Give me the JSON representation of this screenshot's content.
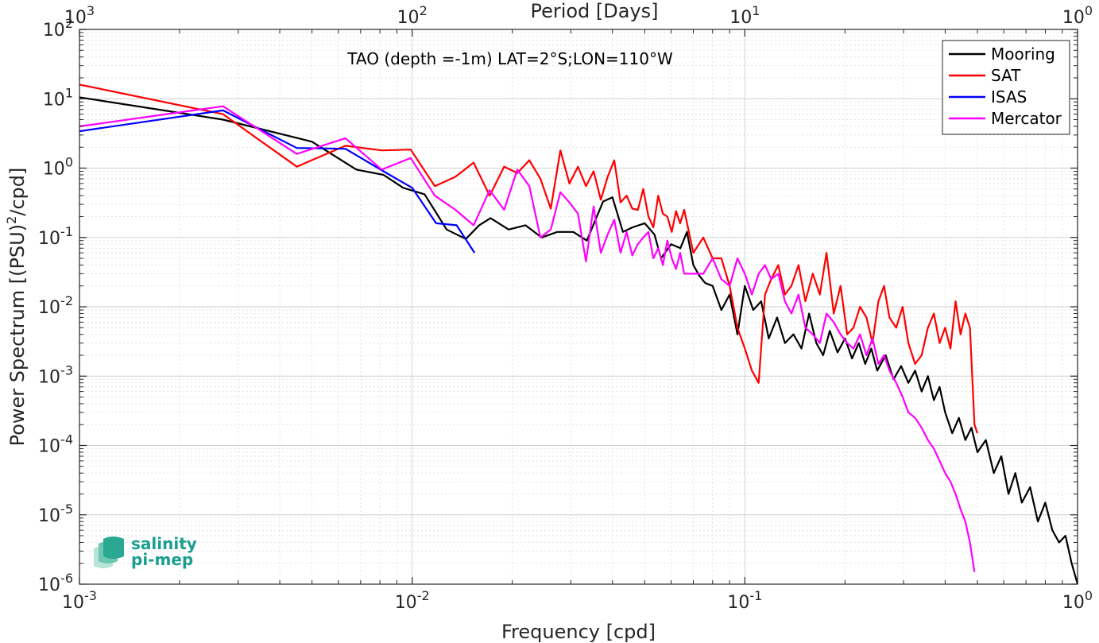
{
  "chart_data": {
    "type": "line",
    "title": "",
    "annotation": "TAO (depth =-1m) LAT=2°S;LON=110°W",
    "xlabel": "Frequency [cpd]",
    "ylabel_parts": [
      "Power Spectrum [(PSU)",
      "2",
      "/cpd]"
    ],
    "top_xlabel": "Period [Days]",
    "xscale": "log",
    "yscale": "log",
    "xlim": [
      0.001,
      1
    ],
    "ylim": [
      1e-06,
      100
    ],
    "grid": true,
    "legend_position": "top-right",
    "x_ticks": [
      {
        "value": 0.001,
        "base": "10",
        "exp": "-3"
      },
      {
        "value": 0.01,
        "base": "10",
        "exp": "-2"
      },
      {
        "value": 0.1,
        "base": "10",
        "exp": "-1"
      },
      {
        "value": 1,
        "base": "10",
        "exp": "0"
      }
    ],
    "top_ticks": [
      {
        "value": 0.001,
        "base": "10",
        "exp": "3"
      },
      {
        "value": 0.01,
        "base": "10",
        "exp": "2"
      },
      {
        "value": 0.1,
        "base": "10",
        "exp": "1"
      },
      {
        "value": 1,
        "base": "10",
        "exp": "0"
      }
    ],
    "y_ticks": [
      {
        "value": 100,
        "base": "10",
        "exp": "2"
      },
      {
        "value": 10,
        "base": "10",
        "exp": "1"
      },
      {
        "value": 1,
        "base": "10",
        "exp": "0"
      },
      {
        "value": 0.1,
        "base": "10",
        "exp": "-1"
      },
      {
        "value": 0.01,
        "base": "10",
        "exp": "-2"
      },
      {
        "value": 0.001,
        "base": "10",
        "exp": "-3"
      },
      {
        "value": 0.0001,
        "base": "10",
        "exp": "-4"
      },
      {
        "value": 1e-05,
        "base": "10",
        "exp": "-5"
      },
      {
        "value": 1e-06,
        "base": "10",
        "exp": "-6"
      }
    ],
    "series": [
      {
        "name": "Mooring",
        "color": "#000000",
        "x": [
          0.001,
          0.0027,
          0.005,
          0.0068,
          0.0082,
          0.0094,
          0.0109,
          0.0127,
          0.0145,
          0.0159,
          0.0172,
          0.0195,
          0.0219,
          0.0245,
          0.0273,
          0.0305,
          0.0335,
          0.0375,
          0.04,
          0.043,
          0.046,
          0.05,
          0.0535,
          0.056,
          0.06,
          0.064,
          0.067,
          0.07,
          0.073,
          0.076,
          0.08,
          0.085,
          0.09,
          0.095,
          0.1,
          0.106,
          0.112,
          0.118,
          0.125,
          0.132,
          0.14,
          0.148,
          0.156,
          0.164,
          0.172,
          0.18,
          0.19,
          0.2,
          0.21,
          0.22,
          0.23,
          0.24,
          0.25,
          0.265,
          0.28,
          0.295,
          0.31,
          0.325,
          0.34,
          0.355,
          0.37,
          0.385,
          0.4,
          0.42,
          0.44,
          0.46,
          0.48,
          0.5,
          0.53,
          0.56,
          0.59,
          0.62,
          0.65,
          0.68,
          0.72,
          0.76,
          0.8,
          0.84,
          0.88,
          0.92,
          0.96,
          1.0
        ],
        "y": [
          10.5,
          5.0,
          2.4,
          0.95,
          0.8,
          0.52,
          0.42,
          0.13,
          0.095,
          0.15,
          0.19,
          0.13,
          0.15,
          0.1,
          0.12,
          0.12,
          0.09,
          0.33,
          0.38,
          0.12,
          0.14,
          0.16,
          0.11,
          0.05,
          0.08,
          0.07,
          0.12,
          0.04,
          0.028,
          0.022,
          0.02,
          0.009,
          0.015,
          0.004,
          0.02,
          0.009,
          0.012,
          0.0035,
          0.007,
          0.003,
          0.004,
          0.0025,
          0.008,
          0.003,
          0.002,
          0.0045,
          0.0022,
          0.0035,
          0.0018,
          0.003,
          0.0015,
          0.0025,
          0.0012,
          0.002,
          0.0009,
          0.0014,
          0.0008,
          0.0012,
          0.0006,
          0.001,
          0.00045,
          0.0007,
          0.0003,
          0.00015,
          0.00025,
          0.00012,
          0.00018,
          8e-05,
          0.00012,
          4e-05,
          7e-05,
          2e-05,
          4e-05,
          1.5e-05,
          2.5e-05,
          8e-06,
          1.5e-05,
          6e-06,
          4e-06,
          5e-06,
          2e-06,
          1e-06
        ]
      },
      {
        "name": "SAT",
        "color": "#ff0000",
        "x": [
          0.001,
          0.0027,
          0.0045,
          0.0063,
          0.0081,
          0.0099,
          0.0117,
          0.0135,
          0.0153,
          0.0171,
          0.0189,
          0.0207,
          0.0225,
          0.0243,
          0.0261,
          0.0279,
          0.0297,
          0.0315,
          0.0333,
          0.0351,
          0.0369,
          0.0387,
          0.0405,
          0.0423,
          0.0441,
          0.0459,
          0.0477,
          0.0495,
          0.0513,
          0.0531,
          0.0549,
          0.0567,
          0.0585,
          0.0603,
          0.0621,
          0.0639,
          0.0657,
          0.07,
          0.075,
          0.08,
          0.085,
          0.09,
          0.095,
          0.1,
          0.105,
          0.11,
          0.115,
          0.12,
          0.126,
          0.132,
          0.138,
          0.145,
          0.152,
          0.16,
          0.168,
          0.176,
          0.185,
          0.194,
          0.203,
          0.212,
          0.222,
          0.232,
          0.242,
          0.252,
          0.262,
          0.272,
          0.285,
          0.298,
          0.31,
          0.325,
          0.34,
          0.355,
          0.37,
          0.385,
          0.4,
          0.415,
          0.43,
          0.445,
          0.46,
          0.475,
          0.49,
          0.5
        ],
        "y": [
          16.0,
          6.0,
          1.05,
          2.1,
          1.8,
          1.85,
          0.55,
          0.75,
          1.2,
          0.4,
          1.05,
          0.85,
          1.3,
          0.7,
          0.26,
          1.8,
          0.6,
          1.05,
          0.55,
          0.9,
          0.35,
          0.75,
          1.3,
          0.32,
          0.4,
          0.26,
          0.25,
          0.5,
          0.2,
          0.14,
          0.4,
          0.22,
          0.2,
          0.12,
          0.24,
          0.16,
          0.25,
          0.06,
          0.1,
          0.05,
          0.05,
          0.02,
          0.005,
          0.0025,
          0.0012,
          0.0008,
          0.015,
          0.025,
          0.04,
          0.015,
          0.02,
          0.04,
          0.012,
          0.03,
          0.015,
          0.06,
          0.008,
          0.02,
          0.004,
          0.005,
          0.01,
          0.007,
          0.003,
          0.012,
          0.02,
          0.007,
          0.005,
          0.01,
          0.003,
          0.0015,
          0.002,
          0.005,
          0.008,
          0.003,
          0.005,
          0.0025,
          0.012,
          0.004,
          0.008,
          0.005,
          0.0002,
          0.00015
        ]
      },
      {
        "name": "ISAS",
        "color": "#0000ff",
        "x": [
          0.001,
          0.0027,
          0.0045,
          0.0063,
          0.0082,
          0.01,
          0.0118,
          0.0136,
          0.0154
        ],
        "y": [
          3.4,
          6.8,
          1.95,
          1.9,
          0.9,
          0.52,
          0.16,
          0.15,
          0.06
        ]
      },
      {
        "name": "Mercator",
        "color": "#ff00ff",
        "x": [
          0.001,
          0.0027,
          0.0045,
          0.0063,
          0.0081,
          0.0099,
          0.0117,
          0.0135,
          0.0153,
          0.0171,
          0.0189,
          0.0207,
          0.0225,
          0.0243,
          0.0261,
          0.0279,
          0.0297,
          0.0315,
          0.0333,
          0.0351,
          0.0369,
          0.0387,
          0.0405,
          0.0423,
          0.0441,
          0.0459,
          0.0477,
          0.0495,
          0.0513,
          0.0531,
          0.0549,
          0.0567,
          0.0585,
          0.0603,
          0.0621,
          0.0639,
          0.0657,
          0.07,
          0.075,
          0.08,
          0.085,
          0.09,
          0.095,
          0.1,
          0.105,
          0.11,
          0.115,
          0.12,
          0.126,
          0.132,
          0.138,
          0.145,
          0.152,
          0.16,
          0.168,
          0.176,
          0.185,
          0.194,
          0.203,
          0.212,
          0.222,
          0.232,
          0.242,
          0.252,
          0.262,
          0.272,
          0.285,
          0.298,
          0.31,
          0.325,
          0.34,
          0.355,
          0.37,
          0.385,
          0.4,
          0.415,
          0.43,
          0.445,
          0.46,
          0.475,
          0.49
        ],
        "y": [
          4.0,
          7.8,
          1.6,
          2.7,
          0.95,
          1.4,
          0.4,
          0.25,
          0.15,
          0.48,
          0.25,
          0.95,
          0.55,
          0.1,
          0.13,
          0.45,
          0.32,
          0.22,
          0.045,
          0.28,
          0.06,
          0.11,
          0.18,
          0.06,
          0.12,
          0.055,
          0.08,
          0.1,
          0.12,
          0.05,
          0.07,
          0.04,
          0.09,
          0.05,
          0.035,
          0.06,
          0.03,
          0.03,
          0.03,
          0.05,
          0.025,
          0.02,
          0.05,
          0.03,
          0.015,
          0.03,
          0.04,
          0.025,
          0.03,
          0.012,
          0.008,
          0.015,
          0.005,
          0.004,
          0.003,
          0.008,
          0.006,
          0.004,
          0.003,
          0.0025,
          0.004,
          0.002,
          0.0035,
          0.0015,
          0.002,
          0.0012,
          0.0008,
          0.0005,
          0.0003,
          0.00025,
          0.00018,
          0.00012,
          9e-05,
          6e-05,
          4e-05,
          3e-05,
          2e-05,
          1.2e-05,
          8e-06,
          4e-06,
          1.5e-06
        ]
      }
    ],
    "logo": {
      "line1": "salinity",
      "line2": "pi-mep"
    }
  }
}
